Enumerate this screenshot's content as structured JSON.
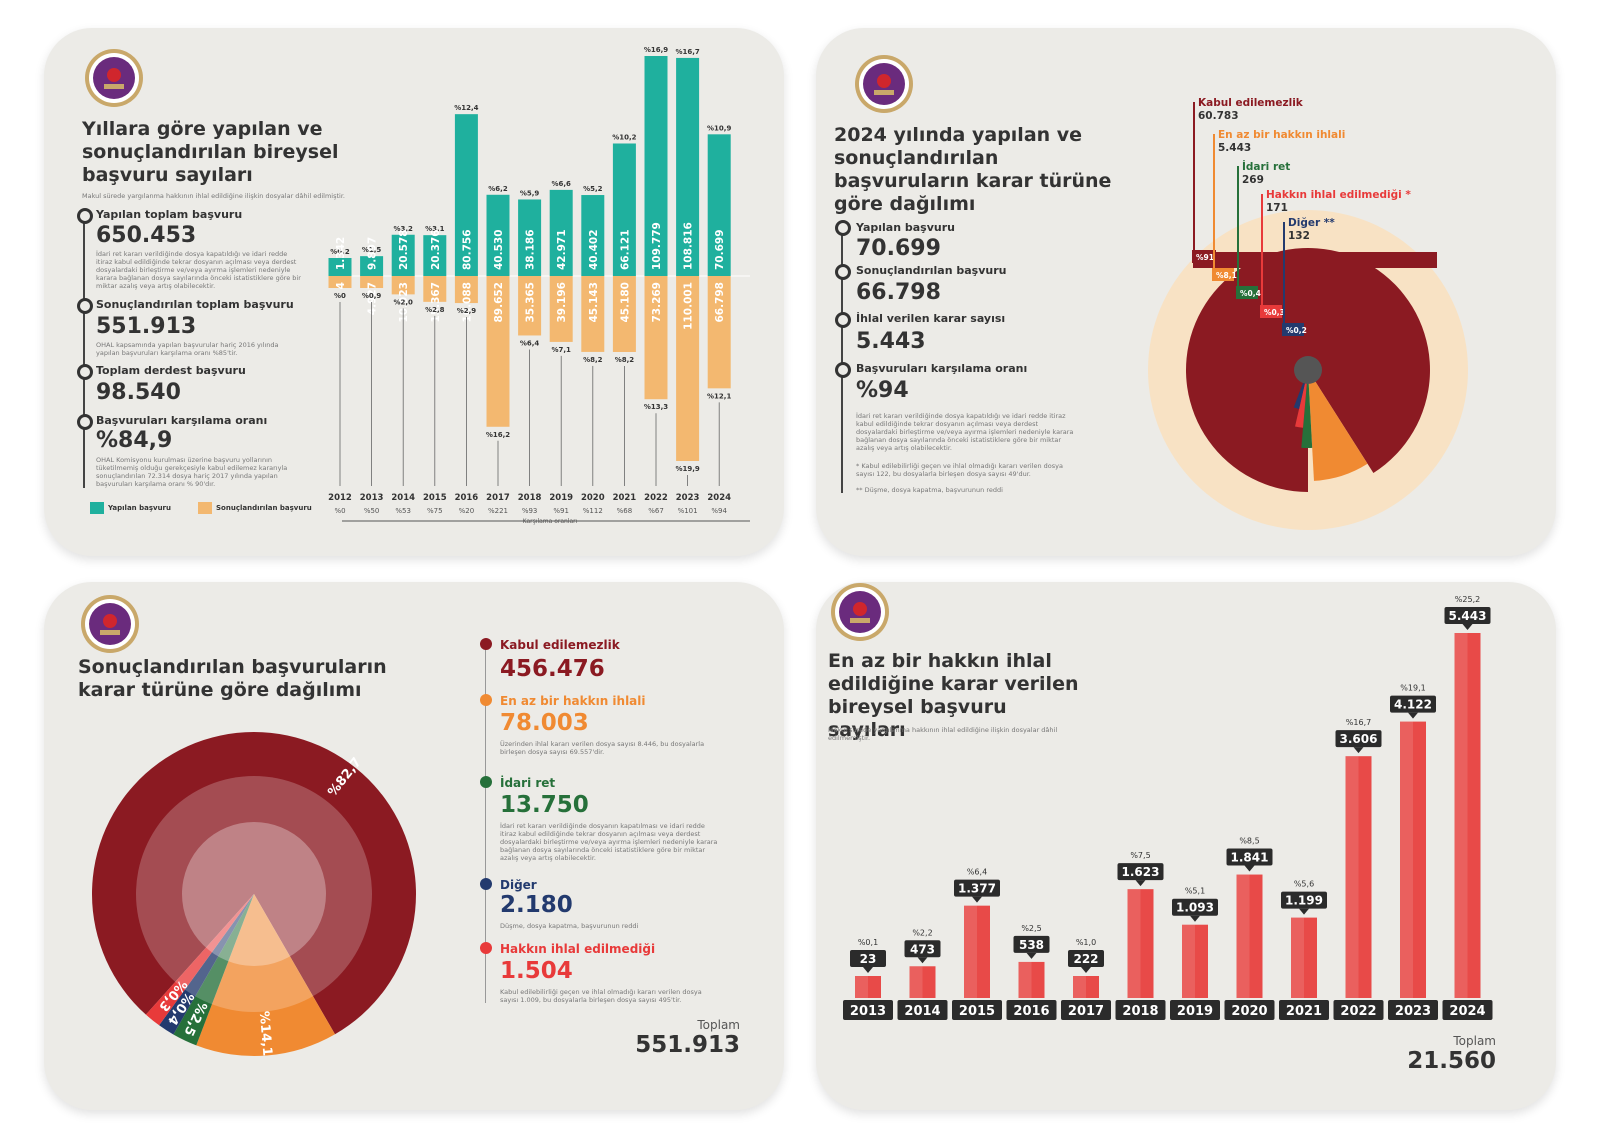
{
  "colors": {
    "teal": "#1fb09e",
    "orange_light": "#f3b870",
    "dark_red": "#8b1a22",
    "orange": "#f08a32",
    "green": "#26703a",
    "navy": "#233a6e",
    "red": "#e83a3a",
    "bar_red": "#e84a48",
    "badge": "#2b2b2b"
  },
  "logo": {
    "text": "T.C. ANAYASA MAHKEMESİ"
  },
  "panel1": {
    "title": "Yıllara göre yapılan ve sonuçlandırılan bireysel başvuru sayıları",
    "subtitle": "Makul sürede yargılanma hakkının ihlal edildiğine ilişkin dosyalar dâhil edilmiştir.",
    "stats": [
      {
        "label": "Yapılan toplam başvuru",
        "value": "650.453",
        "note": "İdari ret kararı verildiğinde dosya kapatıldığı ve idari redde itiraz kabul edildiğinde tekrar dosyanın açılması veya derdest dosyalardaki birleştirme ve/veya ayırma işlemleri nedeniyle karara bağlanan dosya sayılarında önceki istatistiklere göre bir miktar azalış veya artış olabilecektir."
      },
      {
        "label": "Sonuçlandırılan toplam başvuru",
        "value": "551.913",
        "note": "OHAL kapsamında yapılan başvurular hariç 2016 yılında yapılan başvuruları karşılama oranı %85'tir."
      },
      {
        "label": "Toplam derdest başvuru",
        "value": "98.540",
        "note": ""
      },
      {
        "label": "Başvuruları karşılama oranı",
        "value": "%84,9",
        "note": "OHAL Komisyonu kurulması üzerine başvuru yollarının tüketilmemiş olduğu gerekçesiyle kabul edilemez kararıyla sonuçlandırılan 72.314 dosya hariç 2017 yılında yapılan başvuruları karşılama oranı % 90'dır."
      }
    ],
    "legend": {
      "filed": "Yapılan başvuru",
      "concluded": "Sonuçlandırılan başvuru"
    },
    "axis_caption": "Karşılama oranları"
  },
  "panel2": {
    "title": "2024 yılında yapılan ve sonuçlandırılan başvuruların karar türüne göre dağılımı",
    "stats": [
      {
        "label": "Yapılan başvuru",
        "value": "70.699"
      },
      {
        "label": "Sonuçlandırılan başvuru",
        "value": "66.798"
      },
      {
        "label": "İhlal verilen karar sayısı",
        "value": "5.443"
      },
      {
        "label": "Başvuruları karşılama oranı",
        "value": "%94"
      }
    ],
    "notes": [
      "İdari ret kararı verildiğinde dosya kapatıldığı ve idari redde itiraz kabul edildiğinde tekrar dosyanın açılması veya derdest dosyalardaki birleştirme ve/veya ayırma işlemleri nedeniyle karara bağlanan dosya sayılarında önceki istatistiklere göre bir miktar azalış veya artış olabilecektir.",
      "* Kabul edilebilirliği geçen ve ihlal olmadığı kararı verilen dosya sayısı 122, bu dosyalarla birleşen dosya sayısı 49'dur.",
      "** Düşme, dosya kapatma, başvurunun reddi"
    ]
  },
  "panel3": {
    "title": "Sonuçlandırılan başvuruların karar türüne göre dağılımı",
    "legend": [
      {
        "label": "Kabul edilemezlik",
        "value": "456.476",
        "note": ""
      },
      {
        "label": "En az bir hakkın ihlali",
        "value": "78.003",
        "note": "Üzerinden ihlal kararı verilen dosya sayısı 8.446, bu dosyalarla birleşen dosya sayısı 69.557'dir."
      },
      {
        "label": "İdari ret",
        "value": "13.750",
        "note": "İdari ret kararı verildiğinde dosyanın kapatılması ve idari redde itiraz kabul edildiğinde tekrar dosyanın açılması veya derdest dosyalardaki birleştirme ve/veya ayırma işlemleri nedeniyle karara bağlanan dosya sayılarında önceki istatistiklere göre bir miktar azalış veya artış olabilecektir."
      },
      {
        "label": "Diğer",
        "value": "2.180",
        "note": "Düşme, dosya kapatma, başvurunun reddi"
      },
      {
        "label": "Hakkın ihlal edilmediği",
        "value": "1.504",
        "note": "Kabul edilebilirliği geçen ve ihlal olmadığı kararı verilen dosya sayısı 1.009, bu dosyalarla birleşen dosya sayısı 495'tir."
      }
    ],
    "total_label": "Toplam",
    "total_value": "551.913"
  },
  "panel4": {
    "title": "En az bir hakkın ihlal edildiğine karar verilen bireysel başvuru sayıları",
    "subtitle": "Makul sürede yargılanma hakkının ihlal edildiğine ilişkin dosyalar dâhil edilmemiştir.",
    "total_label": "Toplam",
    "total_value": "21.560"
  },
  "chart_data": [
    {
      "type": "bar",
      "title": "Yıllara göre yapılan ve sonuçlandırılan bireysel başvuru sayıları",
      "categories": [
        "2012",
        "2013",
        "2014",
        "2015",
        "2016",
        "2017",
        "2018",
        "2019",
        "2020",
        "2021",
        "2022",
        "2023",
        "2024"
      ],
      "series": [
        {
          "name": "Yapılan başvuru",
          "values": [
            1342,
            9897,
            20578,
            20376,
            80756,
            40530,
            38186,
            42971,
            40402,
            66121,
            109779,
            108816,
            70699
          ],
          "labels": [
            "1.342",
            "9.897",
            "20.578",
            "20.376",
            "80.756",
            "40.530",
            "38.186",
            "42.971",
            "40.402",
            "66.121",
            "109.779",
            "108.816",
            "70.699"
          ],
          "pct": [
            "%0,2",
            "%1,5",
            "%3,2",
            "%3,1",
            "%12,4",
            "%6,2",
            "%5,9",
            "%6,6",
            "%5,2",
            "%10,2",
            "%16,9",
            "%16,7",
            "%10,9"
          ]
        },
        {
          "name": "Sonuçlandırılan başvuru",
          "values": [
            4,
            4927,
            10923,
            15367,
            16088,
            89652,
            35365,
            39196,
            45143,
            45180,
            73269,
            110001,
            66798
          ],
          "labels": [
            "4",
            "4.927",
            "10.923",
            "15.367",
            "16.088",
            "89.652",
            "35.365",
            "39.196",
            "45.143",
            "45.180",
            "73.269",
            "110.001",
            "66.798"
          ],
          "pct": [
            "%0",
            "%0,9",
            "%2,0",
            "%2,8",
            "%2,9",
            "%16,2",
            "%6,4",
            "%7,1",
            "%8,2",
            "%8,2",
            "%13,3",
            "%19,9",
            "%12,1"
          ]
        }
      ],
      "ratios": [
        "%0",
        "%50",
        "%53",
        "%75",
        "%20",
        "%221",
        "%93",
        "%91",
        "%112",
        "%68",
        "%67",
        "%101",
        "%94"
      ]
    },
    {
      "type": "pie",
      "title": "2024 yılında yapılan ve sonuçlandırılan başvuruların karar türüne göre dağılımı",
      "slices": [
        {
          "label": "Kabul edilemezlik",
          "value": 60783,
          "value_label": "60.783",
          "pct": "%91"
        },
        {
          "label": "En az bir hakkın ihlali",
          "value": 5443,
          "value_label": "5.443",
          "pct": "%8,1"
        },
        {
          "label": "İdari ret",
          "value": 269,
          "value_label": "269",
          "pct": "%0,4"
        },
        {
          "label": "Hakkın ihlal edilmediği *",
          "value": 171,
          "value_label": "171",
          "pct": "%0,3"
        },
        {
          "label": "Diğer **",
          "value": 132,
          "value_label": "132",
          "pct": "%0,2"
        }
      ]
    },
    {
      "type": "pie",
      "title": "Sonuçlandırılan başvuruların karar türüne göre dağılımı",
      "slices": [
        {
          "label": "Kabul edilemezlik",
          "value": 456476,
          "pct": "%82,7"
        },
        {
          "label": "En az bir hakkın ihlali",
          "value": 78003,
          "pct": "%14,1"
        },
        {
          "label": "İdari ret",
          "value": 13750,
          "pct": "%2,5"
        },
        {
          "label": "Diğer",
          "value": 2180,
          "pct": "%0,4"
        },
        {
          "label": "Hakkın ihlal edilmediği",
          "value": 1504,
          "pct": "%0,3"
        }
      ]
    },
    {
      "type": "bar",
      "title": "En az bir hakkın ihlal edildiğine karar verilen bireysel başvuru sayıları",
      "categories": [
        "2013",
        "2014",
        "2015",
        "2016",
        "2017",
        "2018",
        "2019",
        "2020",
        "2021",
        "2022",
        "2023",
        "2024"
      ],
      "values": [
        23,
        473,
        1377,
        538,
        222,
        1623,
        1093,
        1841,
        1199,
        3606,
        4122,
        5443
      ],
      "labels": [
        "23",
        "473",
        "1.377",
        "538",
        "222",
        "1.623",
        "1.093",
        "1.841",
        "1.199",
        "3.606",
        "4.122",
        "5.443"
      ],
      "pct": [
        "%0,1",
        "%2,2",
        "%6,4",
        "%2,5",
        "%1,0",
        "%7,5",
        "%5,1",
        "%8,5",
        "%5,6",
        "%16,7",
        "%19,1",
        "%25,2"
      ]
    }
  ]
}
